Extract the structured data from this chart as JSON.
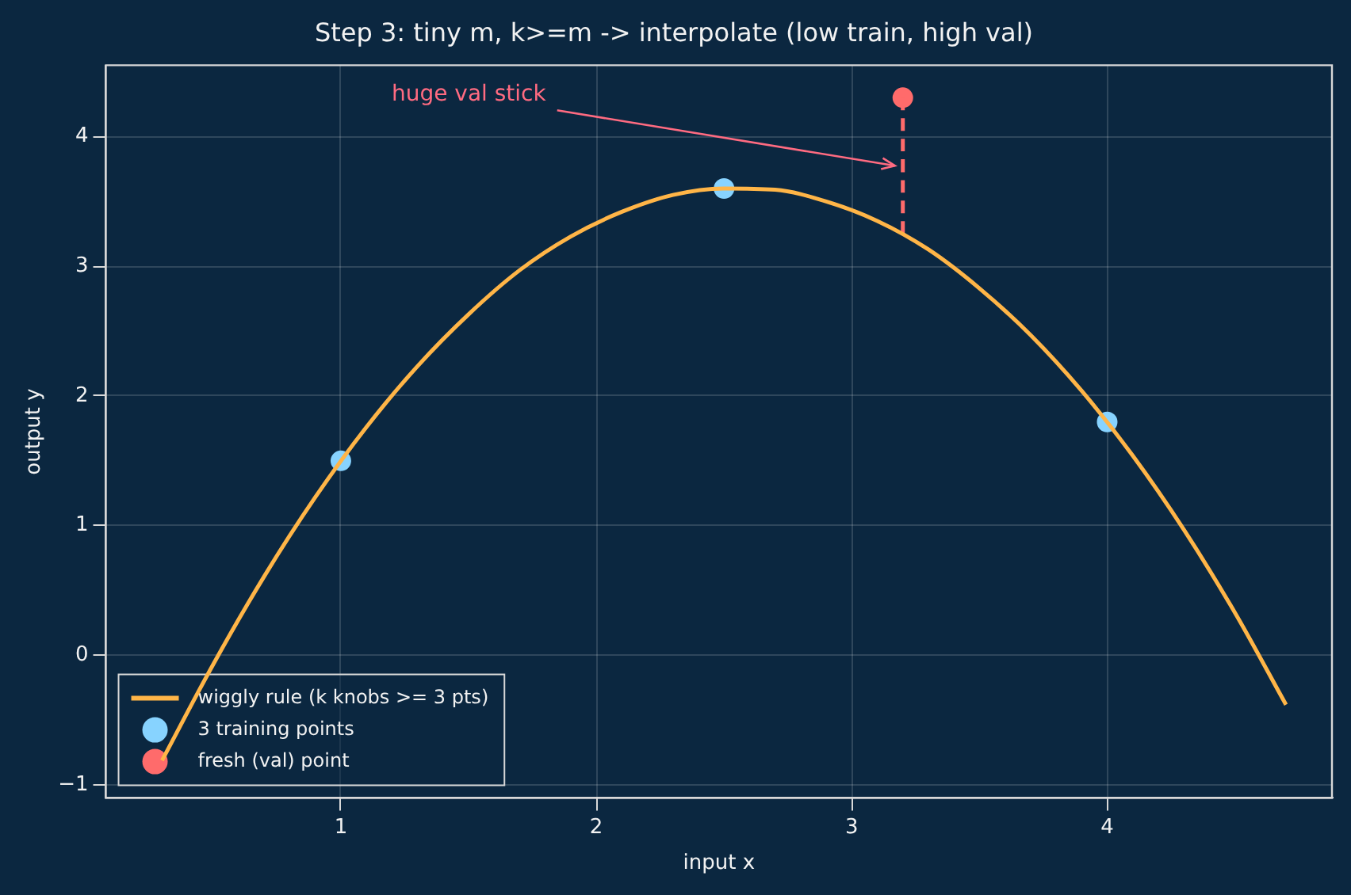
{
  "chart_data": {
    "type": "line",
    "title": "Step 3: tiny m, k>=m -> interpolate (low train, high val)",
    "xlabel": "input x",
    "ylabel": "output y",
    "series": [
      {
        "name": "wiggly rule (k knobs >= 3 pts)",
        "type": "line",
        "color": "#ffb547",
        "marker": "none",
        "x": [
          0.3,
          0.5,
          0.7,
          0.9,
          1.1,
          1.3,
          1.5,
          1.7,
          1.9,
          2.1,
          2.3,
          2.5,
          2.7,
          2.9,
          3.1,
          3.3,
          3.5,
          3.7,
          3.9,
          4.1,
          4.3,
          4.5,
          4.7
        ],
        "values": [
          -0.81,
          -0.07,
          0.61,
          1.22,
          1.76,
          2.23,
          2.63,
          2.97,
          3.23,
          3.42,
          3.55,
          3.6,
          3.59,
          3.5,
          3.35,
          3.13,
          2.83,
          2.47,
          2.04,
          1.54,
          0.97,
          0.33,
          -0.38
        ]
      },
      {
        "type": "line",
        "color": "#ff6b6b",
        "marker": "none",
        "line_style": "dashed",
        "x": [
          3.2,
          3.2
        ],
        "values": [
          3.25,
          4.3
        ]
      },
      {
        "name": "3 training points",
        "type": "scatter",
        "color": "#87d3ff",
        "marker": "circle",
        "x": [
          1,
          2.5,
          4
        ],
        "values": [
          1.5,
          3.6,
          1.8
        ]
      },
      {
        "name": "fresh (val) point",
        "type": "scatter",
        "color": "#ff6b6b",
        "marker": "circle",
        "x": [
          3.2
        ],
        "values": [
          4.3
        ]
      }
    ],
    "annotations": [
      "huge val stick"
    ],
    "xlim": [
      0.08,
      4.88
    ],
    "xticks": [
      1,
      2,
      3,
      4
    ],
    "ylim": [
      -1.1,
      4.55
    ],
    "yticks": [
      {
        "value": -1,
        "label": "−1"
      },
      0,
      1,
      2,
      3,
      4
    ],
    "grid": true,
    "legend": "bottom left"
  }
}
